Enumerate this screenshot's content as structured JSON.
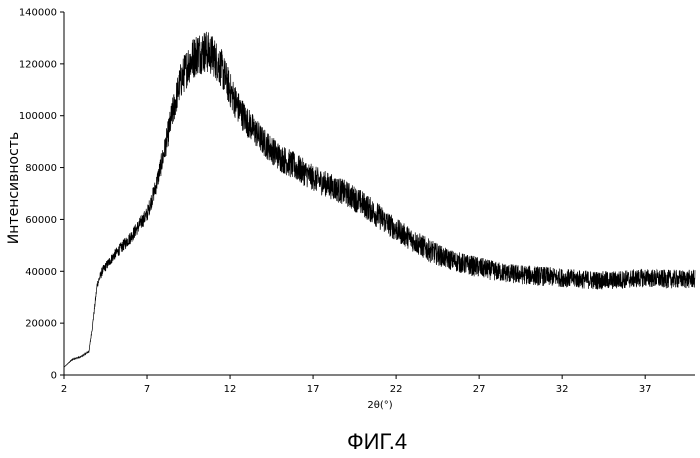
{
  "chart_data": {
    "type": "line",
    "title": "",
    "xlabel": "2θ(°)",
    "ylabel": "Интенсивность",
    "xlim": [
      2,
      40
    ],
    "ylim": [
      0,
      140000
    ],
    "x_ticks": [
      2,
      7,
      12,
      17,
      22,
      27,
      32,
      37
    ],
    "y_ticks": [
      0,
      20000,
      40000,
      60000,
      80000,
      100000,
      120000,
      140000
    ],
    "grid": false,
    "legend": "none",
    "line_color": "#000000",
    "series": [
      {
        "x": [
          2.0,
          2.5,
          3.0,
          3.5,
          3.7,
          4.0,
          4.3,
          5.0,
          6.0,
          7.0,
          7.5,
          8.0,
          8.5,
          9.0,
          9.5,
          10.0,
          10.5,
          11.0,
          11.5,
          12.0,
          12.5,
          13.0,
          14.0,
          15.0,
          16.0,
          17.0,
          18.0,
          19.0,
          20.0,
          21.0,
          22.0,
          23.0,
          24.0,
          25.0,
          26.0,
          27.0,
          28.0,
          29.0,
          30.0,
          31.0,
          32.0,
          33.0,
          34.0,
          35.0,
          36.0,
          37.0,
          38.0,
          39.0,
          40.0
        ],
        "values": [
          3000,
          6000,
          7000,
          9000,
          18000,
          35000,
          40000,
          46000,
          53000,
          62000,
          72000,
          85000,
          100000,
          113000,
          120000,
          124000,
          125000,
          123000,
          118000,
          110000,
          103000,
          98000,
          90000,
          84000,
          80000,
          76000,
          73000,
          70000,
          66000,
          61000,
          56000,
          52000,
          48000,
          45000,
          43000,
          41500,
          40000,
          39000,
          38500,
          38000,
          37500,
          37000,
          36500,
          36500,
          37000,
          37500,
          37000,
          37000,
          37000
        ],
        "noise_band": [
          0,
          200,
          200,
          400,
          800,
          1500,
          1800,
          2000,
          2500,
          3000,
          3500,
          4500,
          6000,
          7000,
          8000,
          8500,
          8500,
          8000,
          7500,
          7000,
          6500,
          6000,
          5500,
          5500,
          5500,
          5000,
          5000,
          5000,
          5000,
          5000,
          4500,
          4500,
          4500,
          4000,
          4000,
          4000,
          3800,
          3800,
          3800,
          3800,
          3600,
          3600,
          3600,
          3600,
          3600,
          3600,
          3600,
          3600,
          3600
        ]
      }
    ]
  },
  "caption": "ФИГ.4"
}
